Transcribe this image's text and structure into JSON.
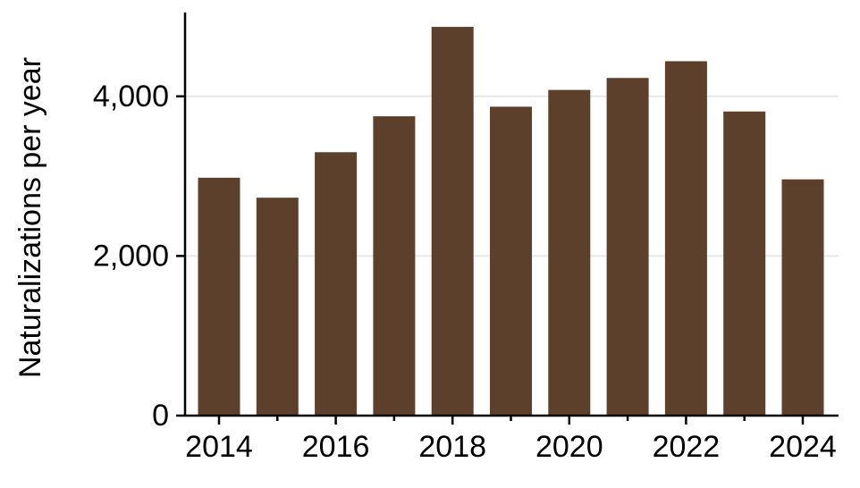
{
  "chart_data": {
    "type": "bar",
    "categories": [
      "2014",
      "2015",
      "2016",
      "2017",
      "2018",
      "2019",
      "2020",
      "2021",
      "2022",
      "2023",
      "2024"
    ],
    "values": [
      2980,
      2730,
      3300,
      3750,
      4870,
      3870,
      4080,
      4230,
      4440,
      3810,
      2960
    ],
    "title": "",
    "xlabel": "",
    "ylabel": "Naturalizations per year",
    "ylim": [
      0,
      5050
    ],
    "yticks": [
      0,
      2000,
      4000
    ],
    "ytick_labels": [
      "0",
      "2,000",
      "4,000"
    ],
    "xtick_labels": [
      "2014",
      "2016",
      "2018",
      "2020",
      "2022",
      "2024"
    ],
    "grid": "horizontal",
    "colors": {
      "bar": "#5c402b",
      "grid": "#e8e8e8",
      "axis": "#000000"
    }
  }
}
